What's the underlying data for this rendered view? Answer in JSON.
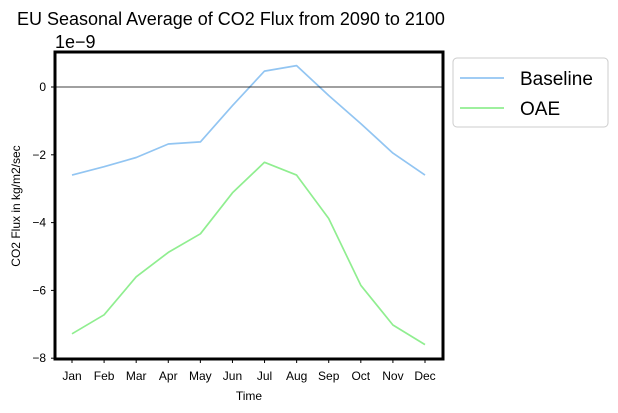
{
  "chart_data": {
    "type": "line",
    "title": "EU Seasonal Average of CO2 Flux from 2090 to 2100",
    "offset_label": "1e−9",
    "xlabel": "Time",
    "ylabel": "CO2 Flux in kg/m2/sec",
    "categories": [
      "Jan",
      "Feb",
      "Mar",
      "Apr",
      "May",
      "Jun",
      "Jul",
      "Aug",
      "Sep",
      "Oct",
      "Nov",
      "Dec"
    ],
    "ylim": [
      -8,
      1
    ],
    "yticks": [
      0,
      -2,
      -4,
      -6,
      -8
    ],
    "ytick_labels": [
      "0",
      "−2",
      "−4",
      "−6",
      "−8"
    ],
    "zero_line": true,
    "grid": false,
    "legend_placement": "outside-upper-right",
    "series": [
      {
        "name": "Baseline",
        "color": "#92c5f2",
        "values": [
          -2.6,
          -2.35,
          -2.08,
          -1.68,
          -1.62,
          -0.55,
          0.47,
          0.63,
          -0.25,
          -1.08,
          -1.95,
          -2.6
        ]
      },
      {
        "name": "OAE",
        "color": "#90ee90",
        "values": [
          -7.28,
          -6.72,
          -5.6,
          -4.88,
          -4.33,
          -3.12,
          -2.22,
          -2.6,
          -3.88,
          -5.85,
          -7.02,
          -7.6
        ]
      }
    ]
  }
}
